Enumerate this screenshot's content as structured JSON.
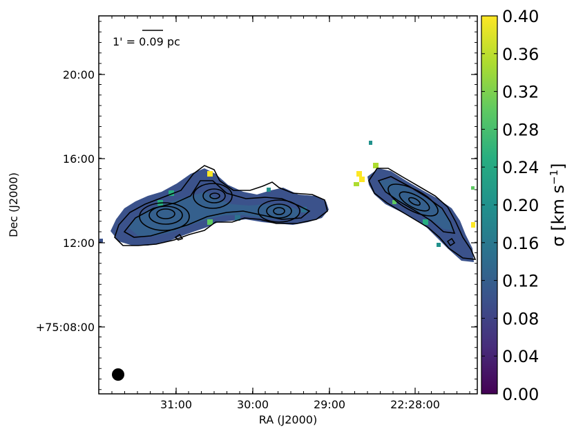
{
  "chart_data": {
    "type": "heatmap",
    "title": "",
    "xlabel": "RA (J2000)",
    "ylabel": "Dec (J2000)",
    "x_ticks": [
      "31:00",
      "30:00",
      "29:00",
      "22:28:00"
    ],
    "y_ticks": [
      "20:00",
      "16:00",
      "12:00",
      "+75:08:00"
    ],
    "colorbar": {
      "label": "σ [km s⁻¹]",
      "min": 0.0,
      "max": 0.4,
      "ticks": [
        "0.00",
        "0.04",
        "0.08",
        "0.12",
        "0.16",
        "0.20",
        "0.24",
        "0.28",
        "0.32",
        "0.36",
        "0.40"
      ],
      "colormap": [
        "#440154",
        "#472d7b",
        "#3b528b",
        "#2c728e",
        "#21918c",
        "#28ae80",
        "#5ec962",
        "#addc30",
        "#fde725"
      ]
    },
    "annotations": {
      "scale_bar_text": "1' = 0.09 pc",
      "beam": "filled circle"
    },
    "dominant_value": 0.12,
    "contour_color": "#000000"
  }
}
